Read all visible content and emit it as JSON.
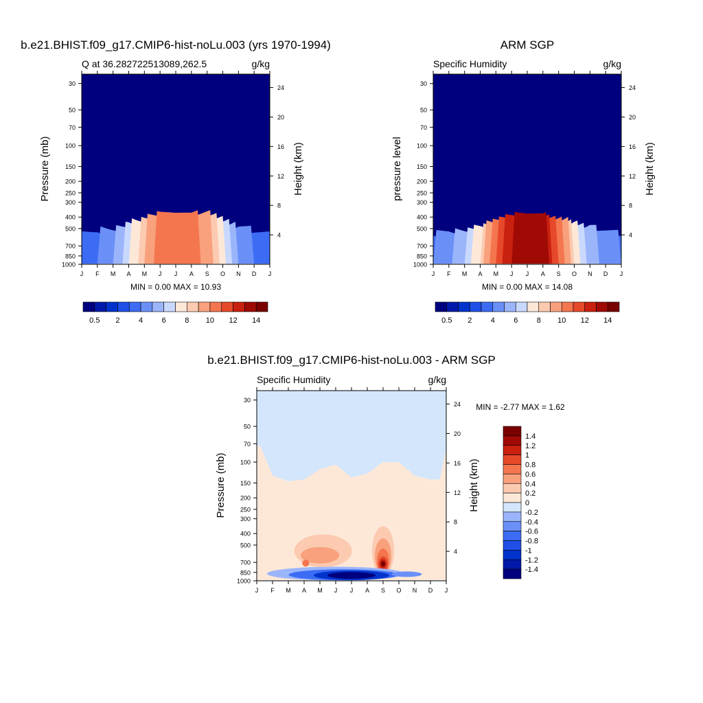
{
  "panels": [
    {
      "title": "b.e21.BHIST.f09_g17.CMIP6-hist-noLu.003 (yrs 1970-1994)",
      "left_label": "Q at 36.282722513089,262.5",
      "right_label": "g/kg",
      "ylabel": "Pressure (mb)",
      "ylabel2": "Height (km)",
      "stats": "MIN =   0.00 MAX =  10.93"
    },
    {
      "title": "ARM SGP",
      "left_label": "Specific Humidity",
      "right_label": "g/kg",
      "ylabel": "pressure level",
      "ylabel2": "Height (km)",
      "stats": "MIN =   0.00 MAX =  14.08"
    },
    {
      "title": "b.e21.BHIST.f09_g17.CMIP6-hist-noLu.003 - ARM SGP",
      "left_label": "Specific Humidity",
      "right_label": "g/kg",
      "ylabel": "Pressure (mb)",
      "ylabel2": "Height (km)",
      "stats": "MIN =  -2.77 MAX =   1.62"
    }
  ],
  "chart_data": [
    {
      "type": "heatmap",
      "title": "b.e21.BHIST.f09_g17.CMIP6-hist-noLu.003 (yrs 1970-1994)",
      "xlabel": "",
      "ylabel": "Pressure (mb)",
      "y2label": "Height (km)",
      "x_ticks": [
        "J",
        "F",
        "M",
        "A",
        "M",
        "J",
        "J",
        "A",
        "S",
        "O",
        "N",
        "D",
        "J"
      ],
      "y_ticks": [
        30,
        50,
        70,
        100,
        150,
        200,
        250,
        300,
        400,
        500,
        700,
        850,
        1000
      ],
      "y2_ticks": [
        4,
        8,
        12,
        16,
        20,
        24
      ],
      "y_scale": "log",
      "ylim": [
        1000,
        25
      ],
      "colorbar_levels": [
        0.5,
        1,
        2,
        3,
        4,
        5,
        6,
        7,
        8,
        9,
        10,
        11,
        12,
        13,
        14
      ],
      "colorbar_labels": [
        "0.5",
        "2",
        "4",
        "6",
        "8",
        "10",
        "12",
        "14"
      ],
      "min": 0.0,
      "max": 10.93,
      "profile_months": [
        0,
        1,
        2,
        3,
        4,
        5,
        6,
        7,
        8,
        9,
        10,
        11,
        12
      ],
      "surface_q": [
        3.5,
        3.8,
        5,
        6.5,
        9,
        10.5,
        10.9,
        10.7,
        9.5,
        7.5,
        5,
        4,
        3.5
      ],
      "moist_top_mb": [
        490,
        480,
        460,
        420,
        370,
        345,
        340,
        345,
        340,
        370,
        420,
        470,
        490
      ]
    },
    {
      "type": "heatmap",
      "title": "ARM SGP",
      "xlabel": "",
      "ylabel": "pressure level",
      "y2label": "Height (km)",
      "x_ticks": [
        "J",
        "F",
        "M",
        "A",
        "M",
        "J",
        "J",
        "A",
        "S",
        "O",
        "N",
        "D",
        "J"
      ],
      "y_ticks": [
        30,
        50,
        70,
        100,
        150,
        200,
        250,
        300,
        400,
        500,
        700,
        850,
        1000
      ],
      "y2_ticks": [
        4,
        8,
        12,
        16,
        20,
        24
      ],
      "y_scale": "log",
      "ylim": [
        1000,
        25
      ],
      "colorbar_levels": [
        0.5,
        1,
        2,
        3,
        4,
        5,
        6,
        7,
        8,
        9,
        10,
        11,
        12,
        13,
        14
      ],
      "colorbar_labels": [
        "0.5",
        "2",
        "4",
        "6",
        "8",
        "10",
        "12",
        "14"
      ],
      "min": 0.0,
      "max": 14.08,
      "profile_months": [
        0,
        1,
        2,
        3,
        4,
        5,
        6,
        7,
        8,
        9,
        10,
        11,
        12
      ],
      "surface_q": [
        4,
        4.5,
        6,
        8,
        11,
        13,
        14,
        13.5,
        11,
        8,
        5.5,
        4.5,
        4
      ],
      "moist_top_mb": [
        510,
        500,
        480,
        440,
        390,
        360,
        350,
        360,
        380,
        400,
        440,
        490,
        510
      ]
    },
    {
      "type": "heatmap",
      "title": "b.e21.BHIST.f09_g17.CMIP6-hist-noLu.003 - ARM SGP",
      "xlabel": "",
      "ylabel": "Pressure (mb)",
      "y2label": "Height (km)",
      "x_ticks": [
        "J",
        "F",
        "M",
        "A",
        "M",
        "J",
        "J",
        "A",
        "S",
        "O",
        "N",
        "D",
        "J"
      ],
      "y_ticks": [
        30,
        50,
        70,
        100,
        150,
        200,
        250,
        300,
        400,
        500,
        700,
        850,
        1000
      ],
      "y2_ticks": [
        4,
        8,
        12,
        16,
        20,
        24
      ],
      "y_scale": "log",
      "ylim": [
        1000,
        25
      ],
      "colorbar_levels": [
        -1.4,
        -1.2,
        -1,
        -0.8,
        -0.6,
        -0.4,
        -0.2,
        0,
        0.2,
        0.4,
        0.6,
        0.8,
        1,
        1.2,
        1.4
      ],
      "colorbar_labels": [
        "1.4",
        "1.2",
        "1",
        "0.8",
        "0.6",
        "0.4",
        "0.2",
        "0",
        "-0.2",
        "-0.4",
        "-0.6",
        "-0.8",
        "-1",
        "-1.2",
        "-1.4"
      ],
      "min": -2.77,
      "max": 1.62,
      "boundary_months": [
        0,
        0.2,
        1,
        2,
        3,
        4,
        5,
        6,
        7,
        8,
        9,
        10,
        11,
        11.6,
        12
      ],
      "boundary_mb": [
        75,
        72,
        130,
        145,
        140,
        115,
        105,
        135,
        125,
        100,
        100,
        130,
        140,
        140,
        75
      ],
      "positive_max_location": {
        "month": 8,
        "pressure_mb": 720,
        "value": 1.62
      },
      "negative_min_location": {
        "month": 6,
        "pressure_mb": 900,
        "value": -2.77
      }
    }
  ],
  "colors": {
    "q_palette": [
      "#00007f",
      "#0019a8",
      "#0033cc",
      "#1f4fe6",
      "#3c6cf4",
      "#6a90f8",
      "#9bb5fb",
      "#c9d8fd",
      "#fde8d8",
      "#fccab0",
      "#f9a07c",
      "#f4764f",
      "#e6492a",
      "#c9200f",
      "#a00a05",
      "#7a0000"
    ],
    "diff_palette": [
      "#00007f",
      "#0019a8",
      "#0033cc",
      "#1f4fe6",
      "#3c6cf4",
      "#6a90f8",
      "#9bb5fb",
      "#d4e6fb",
      "#fde8d8",
      "#fccab0",
      "#f9a07c",
      "#f4764f",
      "#e6492a",
      "#c9200f",
      "#a00a05",
      "#7a0000"
    ]
  }
}
